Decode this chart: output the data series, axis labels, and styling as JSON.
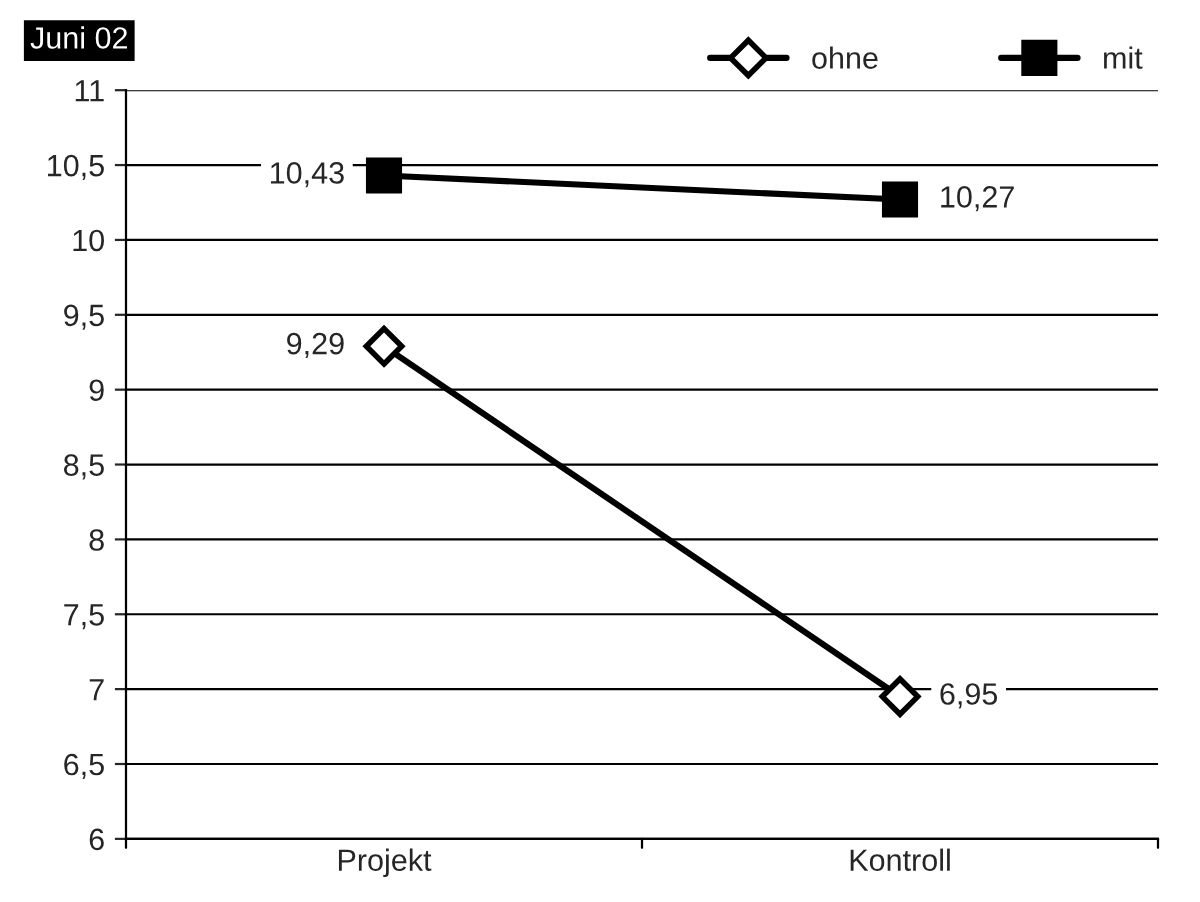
{
  "chart_data": {
    "type": "line",
    "title": "Juni 02",
    "categories": [
      "Projekt",
      "Kontroll"
    ],
    "series": [
      {
        "name": "ohne",
        "color": "#000000",
        "marker": "diamond",
        "values": [
          9.29,
          6.95
        ],
        "value_labels": [
          "9,29",
          "6,95"
        ]
      },
      {
        "name": "mit",
        "color": "#000000",
        "marker": "square",
        "values": [
          10.43,
          10.27
        ],
        "value_labels": [
          "10,43",
          "10,27"
        ]
      }
    ],
    "ylim": [
      6,
      11
    ],
    "yticks": [
      6,
      {
        "value": 6.5,
        "label": "6,5"
      },
      7,
      {
        "value": 7.5,
        "label": "7,5"
      },
      8,
      {
        "value": 8.5,
        "label": "8,5"
      },
      9,
      {
        "value": 9.5,
        "label": "9,5"
      },
      10,
      {
        "value": 10.5,
        "label": "10,5"
      },
      11
    ],
    "grid": "y",
    "legend": "top right",
    "line_style": "solid"
  }
}
